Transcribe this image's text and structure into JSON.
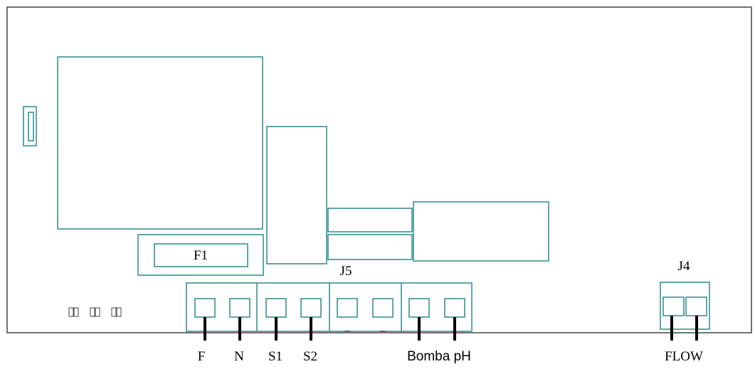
{
  "colors": {
    "board_outline": "#444444",
    "component_outline": "#2a8a8a",
    "wire": "#000000",
    "text": "#000000"
  },
  "labels": {
    "fuse": "F1",
    "connector_main": "J5",
    "connector_flow": "J4"
  },
  "terminals": {
    "f": "F",
    "n": "N",
    "s1": "S1",
    "s2": "S2",
    "pump": "Bomba pH",
    "flow": "FLOW"
  }
}
